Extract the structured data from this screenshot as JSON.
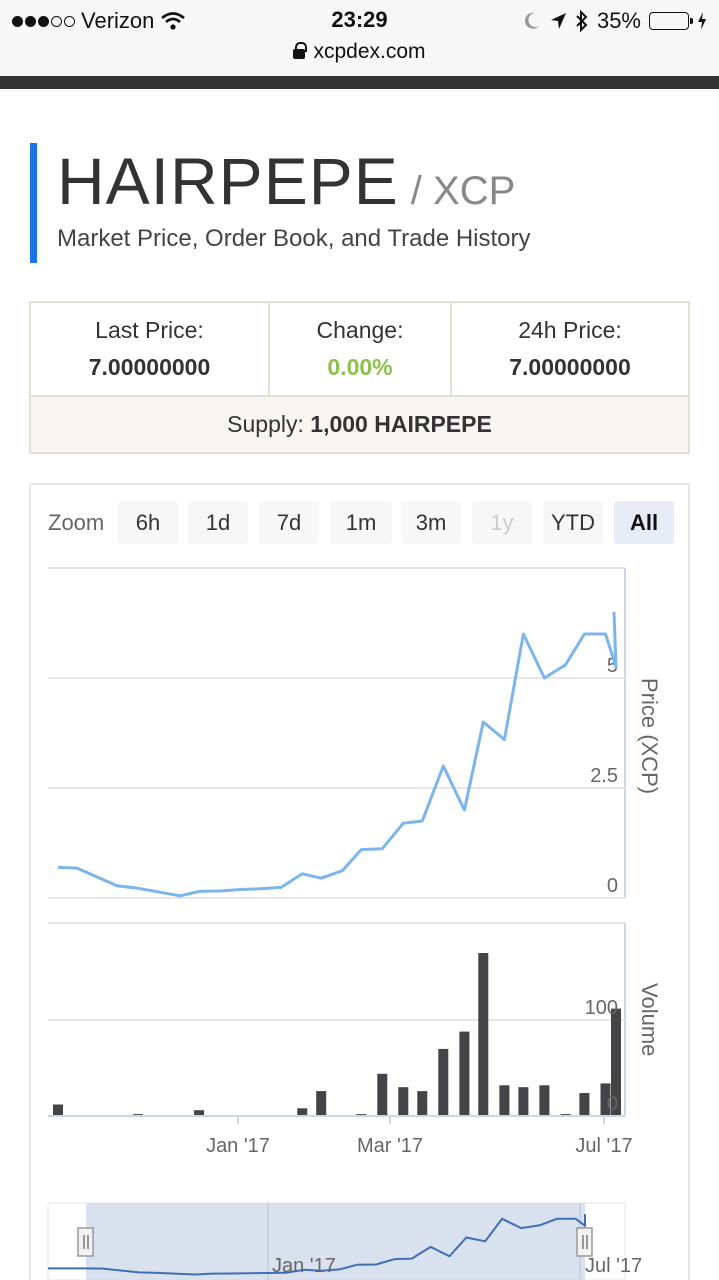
{
  "status_bar": {
    "carrier": "Verizon",
    "time": "23:29",
    "battery": "35%",
    "battery_level": 0.35,
    "url": "xcpdex.com"
  },
  "header": {
    "asset": "HAIRPEPE",
    "pair": "/ XCP",
    "subtitle": "Market Price, Order Book, and Trade History"
  },
  "stats": {
    "last_price_label": "Last Price:",
    "last_price": "7.00000000",
    "change_label": "Change:",
    "change": "0.00%",
    "price_24h_label": "24h Price:",
    "price_24h": "7.00000000",
    "supply_label": "Supply:",
    "supply_value": "1,000 HAIRPEPE"
  },
  "zoom": {
    "label": "Zoom",
    "buttons": [
      {
        "label": "6h",
        "state": "normal"
      },
      {
        "label": "1d",
        "state": "normal"
      },
      {
        "label": "7d",
        "state": "normal"
      },
      {
        "label": "1m",
        "state": "normal"
      },
      {
        "label": "3m",
        "state": "normal"
      },
      {
        "label": "1y",
        "state": "disabled"
      },
      {
        "label": "YTD",
        "state": "normal"
      },
      {
        "label": "All",
        "state": "active"
      }
    ]
  },
  "colors": {
    "price_line": "#7cb5ec",
    "volume_bar": "#434348",
    "navigator_fill": "#cfd9ea",
    "title_accent": "#1a73e8",
    "change_positive": "#8bc34a"
  },
  "chart_data": [
    {
      "type": "line",
      "ylabel": "Price (XCP)",
      "ylim": [
        0,
        7.5
      ],
      "yticks": [
        "0",
        "2.5",
        "5"
      ],
      "x": [
        "2016-10-13",
        "2016-10-22",
        "2016-11-10",
        "2016-11-20",
        "2016-12-10",
        "2016-12-19",
        "2016-12-29",
        "2017-01-07",
        "2017-01-17",
        "2017-01-27",
        "2017-02-06",
        "2017-02-15",
        "2017-02-25",
        "2017-03-06",
        "2017-03-16",
        "2017-03-26",
        "2017-04-04",
        "2017-04-14",
        "2017-04-24",
        "2017-05-03",
        "2017-05-13",
        "2017-05-22",
        "2017-06-01",
        "2017-06-11",
        "2017-06-20",
        "2017-06-30",
        "2017-07-05"
      ],
      "values": [
        0.7,
        0.68,
        0.28,
        0.22,
        0.05,
        0.15,
        0.16,
        0.19,
        0.21,
        0.24,
        0.55,
        0.45,
        0.62,
        1.1,
        1.12,
        1.7,
        1.75,
        3.0,
        2.0,
        4.0,
        3.6,
        6.0,
        5.0,
        5.3,
        6.0,
        6.0,
        5.25
      ],
      "grid": true
    },
    {
      "type": "bar",
      "ylabel": "Volume",
      "ylim": [
        0,
        170
      ],
      "yticks": [
        "0",
        "100"
      ],
      "x": [
        "2016-10-13",
        "2016-11-20",
        "2016-12-19",
        "2017-02-06",
        "2017-02-15",
        "2017-03-06",
        "2017-03-16",
        "2017-03-26",
        "2017-04-04",
        "2017-04-14",
        "2017-04-24",
        "2017-05-03",
        "2017-05-13",
        "2017-05-22",
        "2017-06-01",
        "2017-06-11",
        "2017-06-20",
        "2017-06-30",
        "2017-07-05",
        "2017-07-10"
      ],
      "values": [
        12,
        2,
        6,
        8,
        26,
        2,
        44,
        30,
        26,
        70,
        88,
        170,
        32,
        30,
        32,
        2,
        24,
        34,
        112,
        12
      ],
      "grid": true
    }
  ],
  "x_axis": {
    "ticks": [
      "Jan '17",
      "Mar '17",
      "Jul '17"
    ]
  },
  "navigator": {
    "ticks": [
      "Jan '17",
      "Jul '17"
    ]
  }
}
